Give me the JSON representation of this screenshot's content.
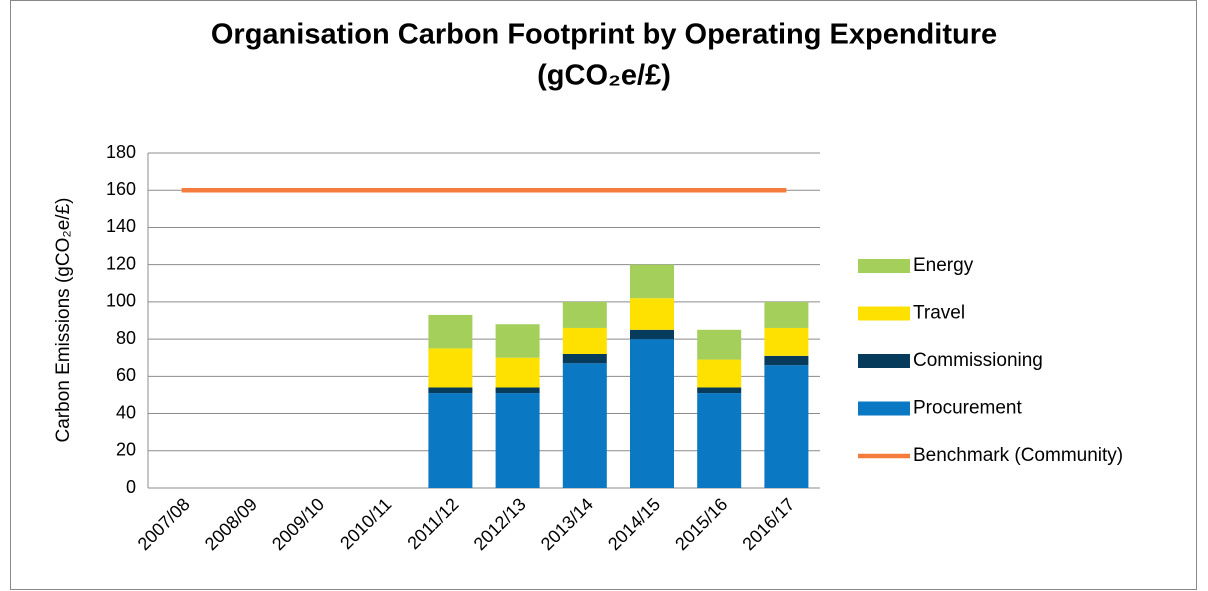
{
  "chart_data": {
    "type": "bar",
    "stacked": true,
    "title": [
      "Organisation Carbon Footprint by Operating Expenditure",
      "(gCO₂e/£)"
    ],
    "y_label": "Carbon Emissions (gCO₂e/£)",
    "categories": [
      "2007/08",
      "2008/09",
      "2009/10",
      "2010/11",
      "2011/12",
      "2012/13",
      "2013/14",
      "2014/15",
      "2015/16",
      "2016/17"
    ],
    "series": [
      {
        "name": "Procurement",
        "color": "#0a78c2",
        "values": [
          null,
          null,
          null,
          null,
          51,
          51,
          67,
          80,
          51,
          66
        ]
      },
      {
        "name": "Commissioning",
        "color": "#073b5c",
        "values": [
          null,
          null,
          null,
          null,
          3,
          3,
          5,
          5,
          3,
          5
        ]
      },
      {
        "name": "Travel",
        "color": "#ffe100",
        "values": [
          null,
          null,
          null,
          null,
          21,
          16,
          14,
          17,
          15,
          15
        ]
      },
      {
        "name": "Energy",
        "color": "#a5cf5b",
        "values": [
          null,
          null,
          null,
          null,
          18,
          18,
          14,
          18,
          16,
          14
        ]
      },
      {
        "name": "Benchmark (Community)",
        "color": "#f47c3c",
        "type": "line",
        "values": [
          160,
          160,
          160,
          160,
          160,
          160,
          160,
          160,
          160,
          160
        ]
      }
    ],
    "ylim": [
      0,
      180
    ],
    "yticks": [
      0,
      20,
      40,
      60,
      80,
      100,
      120,
      140,
      160,
      180
    ],
    "grid": true,
    "legend": "right"
  }
}
